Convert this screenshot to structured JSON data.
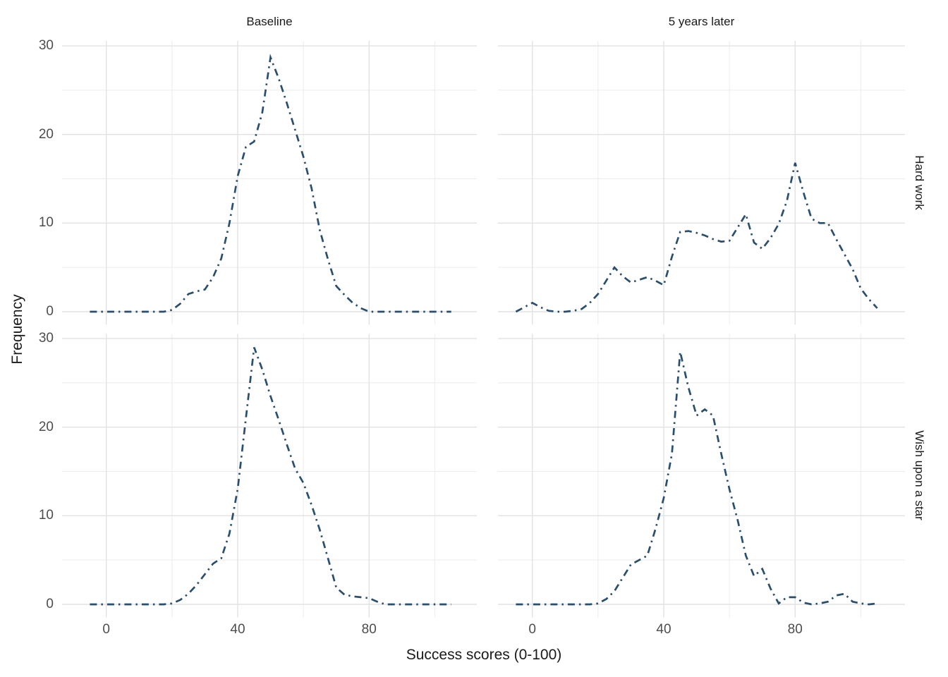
{
  "facets": {
    "col_labels": [
      "Baseline",
      "5 years later"
    ],
    "row_labels": [
      "Hard work",
      "Wish upon a star"
    ]
  },
  "axes": {
    "x": {
      "title": "Success scores (0-100)",
      "tick_labels": [
        "0",
        "40",
        "80"
      ],
      "tick_values": [
        0,
        40,
        80
      ]
    },
    "y": {
      "title": "Frequency",
      "tick_labels": [
        "0",
        "10",
        "20",
        "30"
      ],
      "tick_values": [
        0,
        10,
        20,
        30
      ]
    }
  },
  "colors": {
    "line": "#2a4f6e",
    "grid_major": "#e2e2e2",
    "grid_minor": "#ececec",
    "tick_text": "#4d4d4d",
    "title_text": "#1a1a1a",
    "background": "#ffffff"
  },
  "chart_data": {
    "type": "line",
    "subtype": "frequency-polygon",
    "line_style": "dotdash",
    "line_color": "#2a4f6e",
    "title": "",
    "xlabel": "Success scores (0-100)",
    "ylabel": "Frequency",
    "facet_cols": [
      "Baseline",
      "5 years later"
    ],
    "facet_rows": [
      "Hard work",
      "Wish upon a star"
    ],
    "xlim": [
      -13,
      113
    ],
    "ylim": [
      -1.5,
      30.5
    ],
    "x_ticks": [
      0,
      40,
      80
    ],
    "y_ticks": [
      0,
      10,
      20,
      30
    ],
    "x_gridlines_major": [
      0,
      40,
      80
    ],
    "x_gridlines_minor": [
      20,
      60,
      100
    ],
    "y_gridlines_major": [
      0,
      10,
      20,
      30
    ],
    "y_gridlines_minor": [
      5,
      15,
      25
    ],
    "grid": true,
    "legend": "none",
    "x": [
      -5,
      -2.5,
      0,
      2.5,
      5,
      7.5,
      10,
      12.5,
      15,
      17.5,
      20,
      22.5,
      25,
      27.5,
      30,
      32.5,
      35,
      37.5,
      40,
      42.5,
      45,
      47.5,
      50,
      52.5,
      55,
      57.5,
      60,
      62.5,
      65,
      67.5,
      70,
      72.5,
      75,
      77.5,
      80,
      82.5,
      85,
      87.5,
      90,
      92.5,
      95,
      97.5,
      100,
      102.5,
      105
    ],
    "panels": [
      {
        "row": "Hard work",
        "col": "Baseline",
        "row_index": 0,
        "col_index": 0,
        "values": [
          0,
          0,
          0,
          0,
          0,
          0,
          0,
          0,
          0,
          0,
          0.2,
          0.9,
          2,
          2.3,
          2.5,
          3.9,
          6,
          10,
          15.3,
          18.6,
          19.2,
          22.5,
          28.7,
          26.3,
          23.5,
          20.5,
          17.5,
          13.9,
          9.2,
          5.9,
          2.9,
          1.9,
          1,
          0.4,
          0,
          0,
          0,
          0,
          0,
          0,
          0,
          0,
          0,
          0,
          0
        ]
      },
      {
        "row": "Hard work",
        "col": "5 years later",
        "row_index": 0,
        "col_index": 1,
        "values": [
          0,
          0.5,
          1,
          0.5,
          0.1,
          0,
          0,
          0.1,
          0.3,
          1,
          2,
          3.5,
          5,
          4,
          3.3,
          3.6,
          3.9,
          3.5,
          3,
          6.2,
          9,
          9.1,
          8.9,
          8.6,
          8.2,
          7.9,
          8,
          9.5,
          11,
          7.8,
          7.1,
          8.3,
          9.9,
          12.5,
          16.8,
          13.5,
          10.5,
          10,
          10,
          8.2,
          6.5,
          4.8,
          2.6,
          1.4,
          0.4
        ]
      },
      {
        "row": "Wish upon a star",
        "col": "Baseline",
        "row_index": 1,
        "col_index": 0,
        "values": [
          0,
          0,
          0,
          0,
          0,
          0,
          0,
          0,
          0,
          0,
          0.1,
          0.5,
          1.2,
          2.2,
          3.4,
          4.6,
          5.2,
          8,
          13,
          21,
          29,
          26.5,
          23.5,
          20.8,
          18,
          15.3,
          13.7,
          11.2,
          8.4,
          5.2,
          1.9,
          1.1,
          0.9,
          0.8,
          0.7,
          0.3,
          0,
          0,
          0,
          0,
          0,
          0,
          0,
          0,
          0
        ]
      },
      {
        "row": "Wish upon a star",
        "col": "5 years later",
        "row_index": 1,
        "col_index": 1,
        "values": [
          0,
          0,
          0,
          0,
          0,
          0,
          0,
          0,
          0,
          0,
          0.1,
          0.6,
          1.5,
          3,
          4.5,
          5,
          5.5,
          8.5,
          12,
          17,
          28.5,
          24.5,
          21.3,
          22,
          21.3,
          17,
          13,
          9.5,
          5.5,
          3.2,
          4,
          1.8,
          0.1,
          0.8,
          0.8,
          0.2,
          0,
          0.1,
          0.3,
          1,
          1.2,
          0.3,
          0.1,
          0,
          0.1
        ]
      }
    ]
  }
}
